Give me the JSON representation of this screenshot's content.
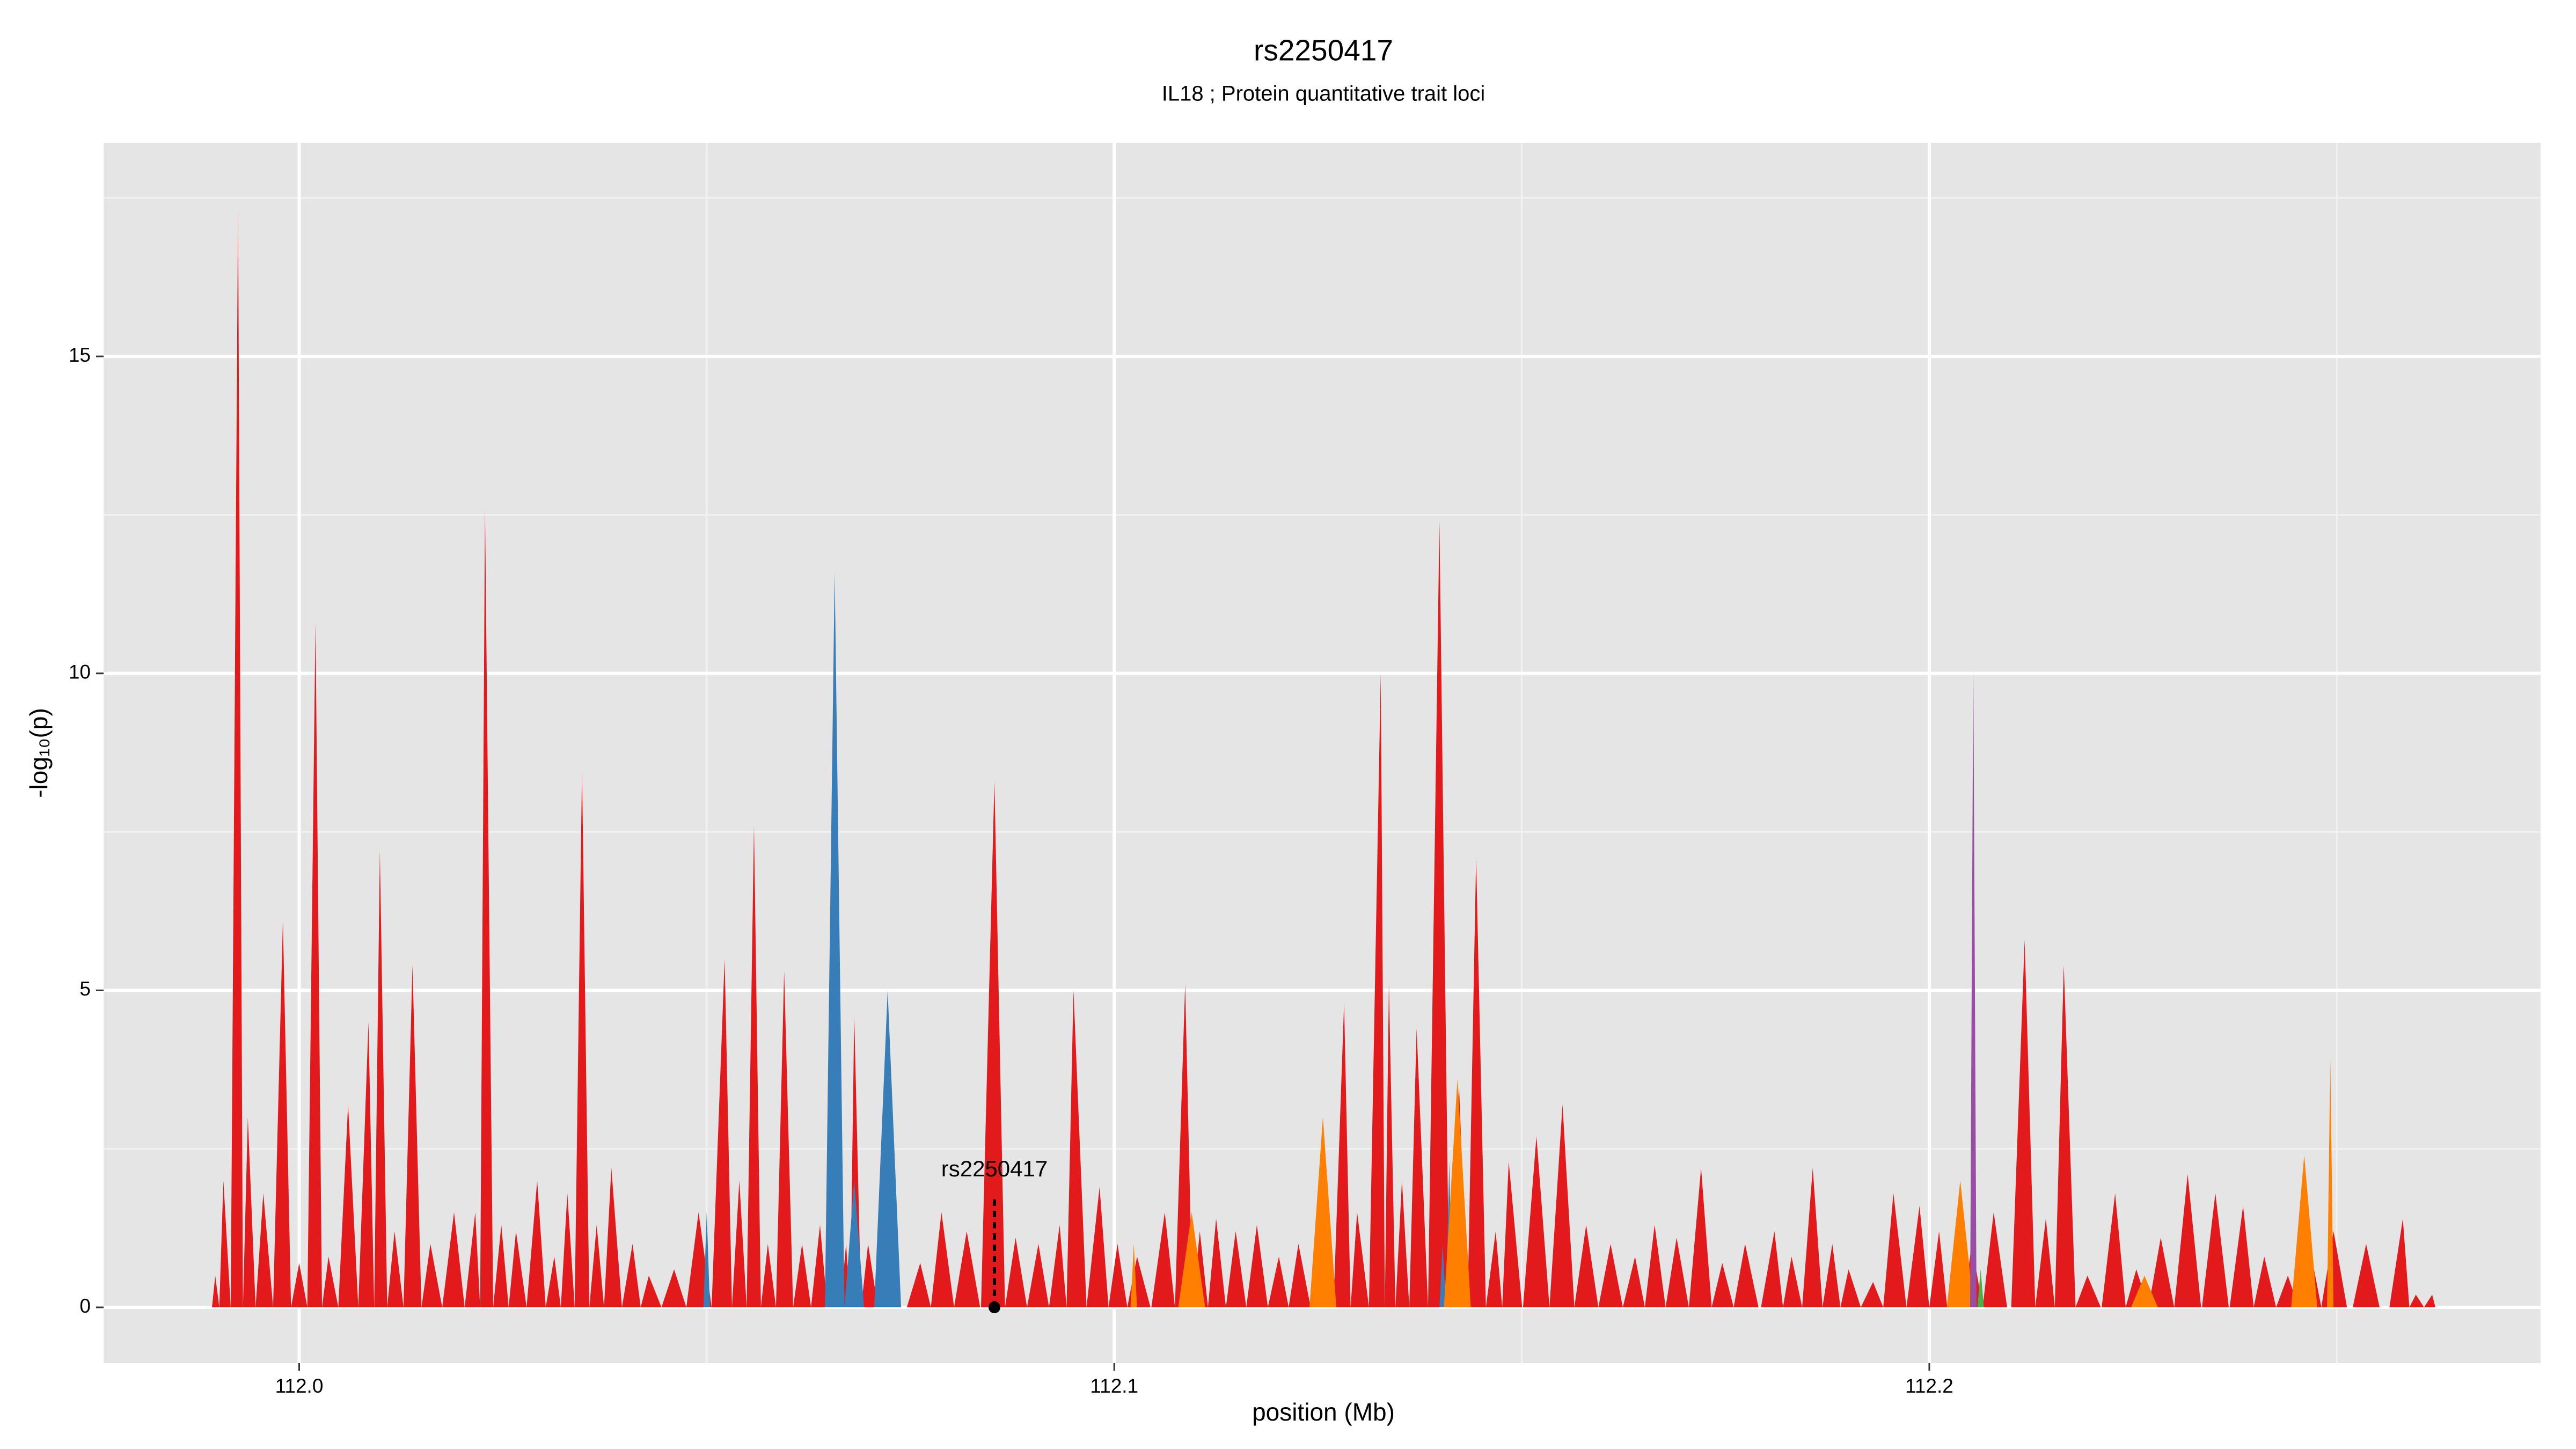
{
  "chart_data": {
    "type": "area",
    "title": "rs2250417",
    "subtitle": "IL18 ; Protein quantitative trait loci",
    "xlabel": "position (Mb)",
    "ylabel": "-log₁₀(p)",
    "xlim": [
      111.976,
      112.275
    ],
    "ylim": [
      -0.88,
      18.37
    ],
    "xticks": [
      {
        "value": 112.0,
        "label": "112.0"
      },
      112.1,
      112.2
    ],
    "yticks": [
      0,
      5,
      10,
      15
    ],
    "xminor": [
      112.05,
      112.15,
      112.25
    ],
    "yminor": [
      2.5,
      7.5,
      12.5,
      17.5
    ],
    "grid": true,
    "series": [
      {
        "name": "red",
        "color": "#e31a1c",
        "x": [
          111.9897,
          111.9907,
          111.9925,
          111.9937,
          111.9956,
          111.998,
          112.0,
          112.002,
          112.0036,
          112.006,
          112.0085,
          112.0099,
          112.0117,
          112.0139,
          112.0161,
          112.019,
          112.0216,
          112.0228,
          112.0248,
          112.0266,
          112.0292,
          112.0313,
          112.0329,
          112.0347,
          112.0365,
          112.0383,
          112.0409,
          112.0429,
          112.046,
          112.049,
          112.0522,
          112.054,
          112.0558,
          112.0575,
          112.0595,
          112.0617,
          112.0639,
          112.0657,
          112.0671,
          112.0681,
          112.0698,
          112.0722,
          112.0762,
          112.0788,
          112.0819,
          112.0853,
          112.0879,
          112.0907,
          112.0933,
          112.095,
          112.0982,
          112.1004,
          112.1028,
          112.1062,
          112.1087,
          112.1105,
          112.1125,
          112.1149,
          112.1175,
          112.1202,
          112.1226,
          112.1256,
          112.1282,
          112.1298,
          112.1327,
          112.1337,
          112.1353,
          112.1371,
          112.1399,
          112.1423,
          112.1444,
          112.1468,
          112.1484,
          112.1518,
          112.155,
          112.1579,
          112.1609,
          112.1639,
          112.1663,
          112.169,
          112.172,
          112.1746,
          112.1774,
          112.181,
          112.1831,
          112.1857,
          112.1881,
          112.1901,
          112.1931,
          112.1956,
          112.1988,
          112.2012,
          112.2032,
          112.2052,
          112.2079,
          112.2117,
          112.2143,
          112.2165,
          112.2194,
          112.2228,
          112.2254,
          112.2284,
          112.2317,
          112.2351,
          112.2385,
          112.2411,
          112.244,
          112.2466,
          112.2496,
          112.2536,
          112.2581,
          112.2597,
          112.2617
        ],
        "values": [
          0.5,
          2,
          17.4,
          3,
          1.8,
          6.1,
          0.7,
          10.8,
          0.8,
          3.2,
          4.5,
          7.2,
          1.2,
          5.4,
          1,
          1.5,
          1.5,
          12.6,
          1.3,
          1.2,
          2,
          0.8,
          1.8,
          8.5,
          1.3,
          2.2,
          1,
          0.5,
          0.6,
          1.5,
          5.5,
          2,
          7.6,
          1,
          5.3,
          1,
          1.3,
          8,
          1,
          4.6,
          1,
          0.6,
          0.7,
          1.5,
          1.2,
          8.3,
          1.1,
          1,
          1.3,
          5,
          1.9,
          1,
          0.8,
          1.5,
          5.1,
          1.2,
          1.4,
          1.2,
          1.3,
          0.8,
          1,
          2.8,
          4.8,
          1.5,
          10,
          5.1,
          2,
          4.4,
          12.4,
          3.5,
          7.1,
          1.2,
          2.3,
          2.7,
          3.2,
          1.3,
          1,
          0.8,
          1.3,
          1.1,
          2.2,
          0.7,
          1,
          1.2,
          0.8,
          2.2,
          1,
          0.6,
          0.4,
          1.8,
          1.6,
          1.2,
          0.6,
          1,
          1.5,
          5.8,
          1.4,
          5.4,
          0.5,
          1.8,
          0.6,
          1.1,
          2.1,
          1.8,
          1.6,
          0.8,
          0.5,
          1,
          1.2,
          1,
          1.4,
          0.2,
          0.2
        ]
      },
      {
        "name": "blue",
        "color": "#377eb8",
        "x": [
          112.05,
          112.0657,
          112.0681,
          112.0722,
          112.1403,
          112.1411
        ],
        "values": [
          1.5,
          11.6,
          2,
          5,
          1,
          2.3
        ]
      },
      {
        "name": "orange",
        "color": "#ff7f00",
        "x": [
          112.1024,
          112.1095,
          112.1256,
          112.1421,
          112.2038,
          112.2264,
          112.246,
          112.2492
        ],
        "values": [
          1,
          1.5,
          3,
          3.6,
          2,
          0.5,
          2.4,
          3.9
        ]
      },
      {
        "name": "purple",
        "color": "#984ea3",
        "x": [
          112.2054
        ],
        "values": [
          10.1
        ]
      },
      {
        "name": "green",
        "color": "#4daf4a",
        "x": [
          112.2063
        ],
        "values": [
          0.6
        ]
      }
    ],
    "annotations": [
      {
        "text": "rs2250417",
        "x": 112.0853,
        "y": 0
      }
    ]
  }
}
